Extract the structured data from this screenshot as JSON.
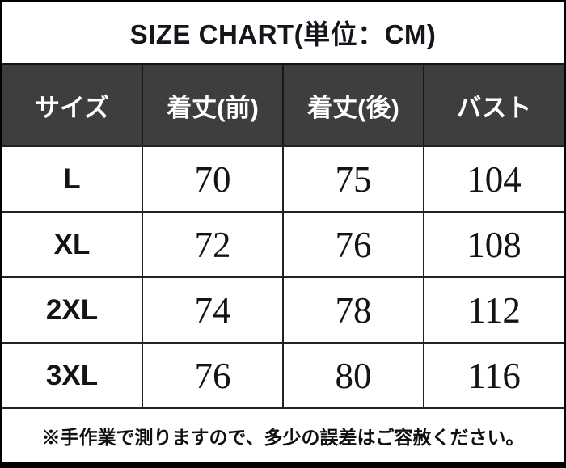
{
  "title": "SIZE CHART(単位：CM)",
  "table": {
    "columns": [
      "サイズ",
      "着丈(前)",
      "着丈(後)",
      "バスト"
    ],
    "rows": [
      {
        "size": "L",
        "values": [
          "70",
          "75",
          "104"
        ]
      },
      {
        "size": "XL",
        "values": [
          "72",
          "76",
          "108"
        ]
      },
      {
        "size": "2XL",
        "values": [
          "74",
          "78",
          "112"
        ]
      },
      {
        "size": "3XL",
        "values": [
          "76",
          "80",
          "116"
        ]
      }
    ]
  },
  "footer_note": "※手作業で測りますので、多少の誤差はご容赦ください。",
  "colors": {
    "header_bg": "#3e3e3e",
    "header_text": "#ffffff",
    "body_bg": "#ffffff",
    "text": "#141414",
    "grid_line": "#222222",
    "outer_border": "#000000"
  },
  "chart_data": {
    "type": "table",
    "title": "SIZE CHART(単位：CM)",
    "unit": "CM",
    "columns": [
      "サイズ",
      "着丈(前)",
      "着丈(後)",
      "バスト"
    ],
    "rows": [
      [
        "L",
        70,
        75,
        104
      ],
      [
        "XL",
        72,
        76,
        108
      ],
      [
        "2XL",
        74,
        78,
        112
      ],
      [
        "3XL",
        76,
        80,
        116
      ]
    ],
    "note": "※手作業で測りますので、多少の誤差はご容赦ください。"
  }
}
